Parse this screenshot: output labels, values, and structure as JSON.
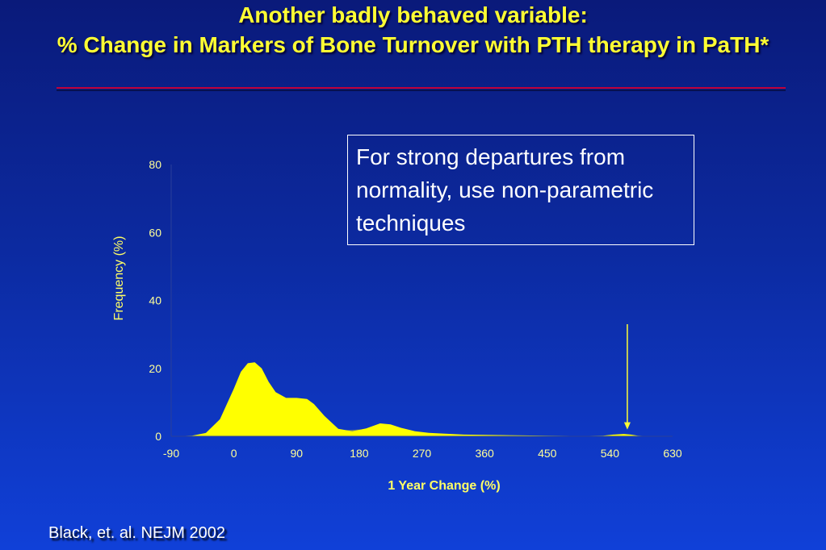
{
  "slide": {
    "title_line1": "Another badly behaved variable:",
    "title_line2": "% Change in Markers of Bone Turnover with PTH therapy in PaTH*",
    "callout": "For strong departures from normality, use non-parametric techniques",
    "citation": "Black, et. al. NEJM 2002"
  },
  "chart_data": {
    "type": "area",
    "xlabel": "1 Year Change (%)",
    "ylabel": "Frequency (%)",
    "xticks": [
      -90,
      0,
      90,
      180,
      270,
      360,
      450,
      540,
      630
    ],
    "yticks": [
      0,
      20,
      40,
      60,
      80
    ],
    "xlim": [
      -90,
      630
    ],
    "ylim": [
      0,
      80
    ],
    "grid": false,
    "colors": {
      "primary_fill": "#ffff00",
      "secondary_fill": "#6f7f7a",
      "text": "#ffff99",
      "arrow": "#ffff33"
    },
    "series": [
      {
        "x": [
          -90,
          -60,
          -40,
          -20,
          0,
          10,
          20,
          30,
          40,
          50,
          60,
          75,
          90,
          105,
          115,
          130,
          150,
          170,
          190,
          210,
          225,
          240,
          260,
          280,
          300,
          330,
          360,
          400,
          450,
          500,
          530,
          545,
          560,
          570,
          580,
          600,
          630
        ],
        "values": [
          0,
          0.2,
          1,
          5,
          14,
          19,
          21.5,
          21.8,
          20,
          16,
          13,
          11.3,
          11.3,
          11,
          9.5,
          6,
          2.2,
          1.5,
          2.3,
          3.8,
          3.5,
          2.5,
          1.5,
          1,
          0.8,
          0.5,
          0.4,
          0.3,
          0.2,
          0.1,
          0.2,
          0.5,
          0.7,
          0.5,
          0.2,
          0,
          0
        ]
      },
      {
        "x": [
          -90,
          -30,
          0,
          60,
          120,
          180,
          210,
          240,
          260,
          280,
          300,
          330,
          360,
          400,
          450,
          500,
          630
        ],
        "values": [
          0,
          0,
          0.3,
          0.8,
          1.4,
          2.0,
          2.1,
          1.6,
          1.0,
          0.6,
          0.4,
          0.25,
          0.15,
          0.1,
          0.05,
          0,
          0
        ]
      }
    ],
    "annotation": {
      "type": "arrow",
      "x": 565,
      "y_from": 33,
      "y_to": 2
    }
  }
}
